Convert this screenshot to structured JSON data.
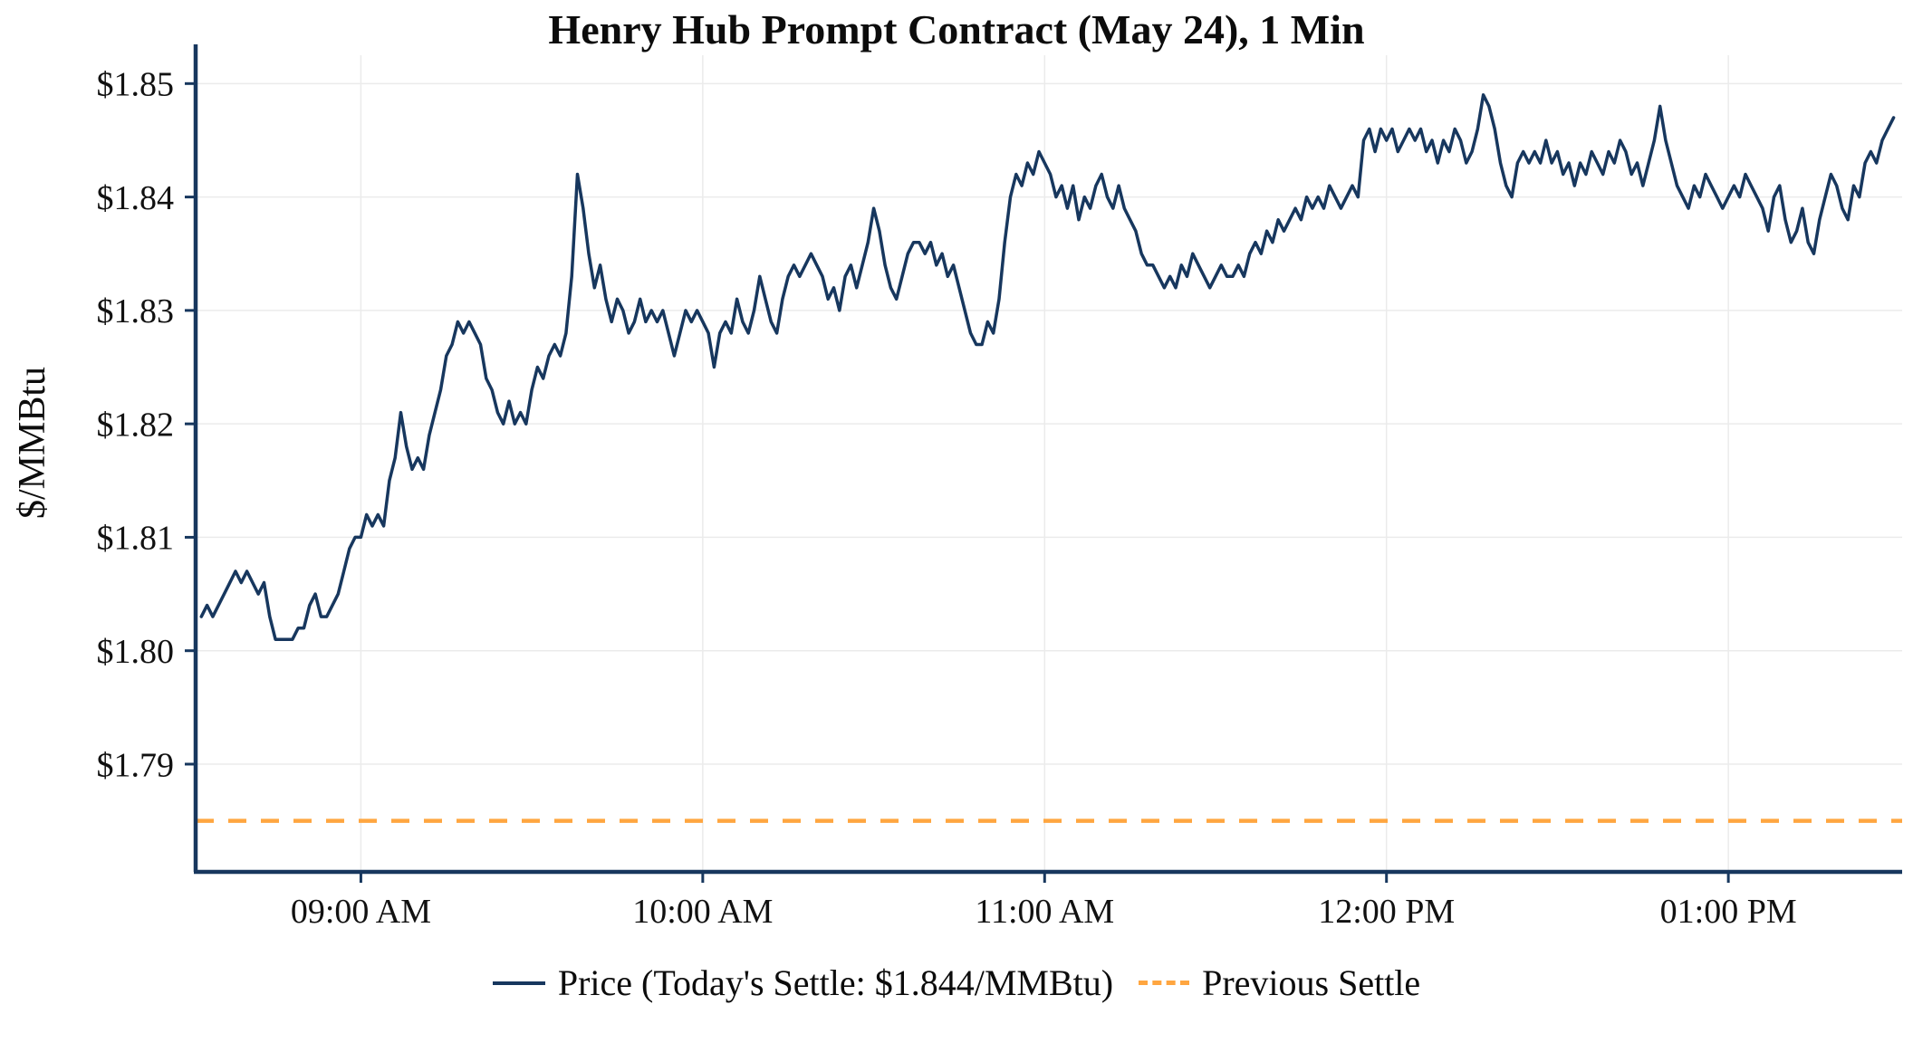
{
  "chart_data": {
    "type": "line",
    "title": "Henry Hub Prompt Contract (May 24), 1 Min",
    "xlabel": "",
    "ylabel": "$/MMBtu",
    "x_unit": "minutes_since_midnight",
    "xlim": [
      511,
      810.5
    ],
    "ylim": [
      1.7805,
      1.8525
    ],
    "grid": true,
    "legend_position": "bottom-center",
    "legend": {
      "price_label": "Price (Today's Settle: $1.844/MMBtu)",
      "settle_label": "Previous Settle"
    },
    "today_settle": 1.844,
    "previous_settle": 1.785,
    "colors": {
      "price": "#17375e",
      "settle": "#ffa640",
      "axis": "#17375e",
      "grid": "#ebebeb",
      "text": "#111111"
    },
    "x_ticks": [
      {
        "m": 540,
        "label": "09:00 AM"
      },
      {
        "m": 600,
        "label": "10:00 AM"
      },
      {
        "m": 660,
        "label": "11:00 AM"
      },
      {
        "m": 720,
        "label": "12:00 PM"
      },
      {
        "m": 780,
        "label": "01:00 PM"
      }
    ],
    "y_ticks": [
      {
        "v": 1.79,
        "label": "$1.79"
      },
      {
        "v": 1.8,
        "label": "$1.80"
      },
      {
        "v": 1.81,
        "label": "$1.81"
      },
      {
        "v": 1.82,
        "label": "$1.82"
      },
      {
        "v": 1.83,
        "label": "$1.83"
      },
      {
        "v": 1.84,
        "label": "$1.84"
      },
      {
        "v": 1.85,
        "label": "$1.85"
      }
    ],
    "series": [
      {
        "name": "Price",
        "points": [
          [
            512,
            1.803
          ],
          [
            513,
            1.804
          ],
          [
            514,
            1.803
          ],
          [
            516,
            1.805
          ],
          [
            518,
            1.807
          ],
          [
            519,
            1.806
          ],
          [
            520,
            1.807
          ],
          [
            522,
            1.805
          ],
          [
            523,
            1.806
          ],
          [
            524,
            1.803
          ],
          [
            525,
            1.801
          ],
          [
            526,
            1.801
          ],
          [
            528,
            1.801
          ],
          [
            529,
            1.802
          ],
          [
            530,
            1.802
          ],
          [
            531,
            1.804
          ],
          [
            532,
            1.805
          ],
          [
            533,
            1.803
          ],
          [
            534,
            1.803
          ],
          [
            535,
            1.804
          ],
          [
            536,
            1.805
          ],
          [
            537,
            1.807
          ],
          [
            538,
            1.809
          ],
          [
            539,
            1.81
          ],
          [
            540,
            1.81
          ],
          [
            541,
            1.812
          ],
          [
            542,
            1.811
          ],
          [
            543,
            1.812
          ],
          [
            544,
            1.811
          ],
          [
            545,
            1.815
          ],
          [
            546,
            1.817
          ],
          [
            547,
            1.821
          ],
          [
            548,
            1.818
          ],
          [
            549,
            1.816
          ],
          [
            550,
            1.817
          ],
          [
            551,
            1.816
          ],
          [
            552,
            1.819
          ],
          [
            553,
            1.821
          ],
          [
            554,
            1.823
          ],
          [
            555,
            1.826
          ],
          [
            556,
            1.827
          ],
          [
            557,
            1.829
          ],
          [
            558,
            1.828
          ],
          [
            559,
            1.829
          ],
          [
            560,
            1.828
          ],
          [
            561,
            1.827
          ],
          [
            562,
            1.824
          ],
          [
            563,
            1.823
          ],
          [
            564,
            1.821
          ],
          [
            565,
            1.82
          ],
          [
            566,
            1.822
          ],
          [
            567,
            1.82
          ],
          [
            568,
            1.821
          ],
          [
            569,
            1.82
          ],
          [
            570,
            1.823
          ],
          [
            571,
            1.825
          ],
          [
            572,
            1.824
          ],
          [
            573,
            1.826
          ],
          [
            574,
            1.827
          ],
          [
            575,
            1.826
          ],
          [
            576,
            1.828
          ],
          [
            577,
            1.833
          ],
          [
            578,
            1.842
          ],
          [
            579,
            1.839
          ],
          [
            580,
            1.835
          ],
          [
            581,
            1.832
          ],
          [
            582,
            1.834
          ],
          [
            583,
            1.831
          ],
          [
            584,
            1.829
          ],
          [
            585,
            1.831
          ],
          [
            586,
            1.83
          ],
          [
            587,
            1.828
          ],
          [
            588,
            1.829
          ],
          [
            589,
            1.831
          ],
          [
            590,
            1.829
          ],
          [
            591,
            1.83
          ],
          [
            592,
            1.829
          ],
          [
            593,
            1.83
          ],
          [
            594,
            1.828
          ],
          [
            595,
            1.826
          ],
          [
            596,
            1.828
          ],
          [
            597,
            1.83
          ],
          [
            598,
            1.829
          ],
          [
            599,
            1.83
          ],
          [
            600,
            1.829
          ],
          [
            601,
            1.828
          ],
          [
            602,
            1.825
          ],
          [
            603,
            1.828
          ],
          [
            604,
            1.829
          ],
          [
            605,
            1.828
          ],
          [
            606,
            1.831
          ],
          [
            607,
            1.829
          ],
          [
            608,
            1.828
          ],
          [
            609,
            1.83
          ],
          [
            610,
            1.833
          ],
          [
            611,
            1.831
          ],
          [
            612,
            1.829
          ],
          [
            613,
            1.828
          ],
          [
            614,
            1.831
          ],
          [
            615,
            1.833
          ],
          [
            616,
            1.834
          ],
          [
            617,
            1.833
          ],
          [
            618,
            1.834
          ],
          [
            619,
            1.835
          ],
          [
            620,
            1.834
          ],
          [
            621,
            1.833
          ],
          [
            622,
            1.831
          ],
          [
            623,
            1.832
          ],
          [
            624,
            1.83
          ],
          [
            625,
            1.833
          ],
          [
            626,
            1.834
          ],
          [
            627,
            1.832
          ],
          [
            628,
            1.834
          ],
          [
            629,
            1.836
          ],
          [
            630,
            1.839
          ],
          [
            631,
            1.837
          ],
          [
            632,
            1.834
          ],
          [
            633,
            1.832
          ],
          [
            634,
            1.831
          ],
          [
            635,
            1.833
          ],
          [
            636,
            1.835
          ],
          [
            637,
            1.836
          ],
          [
            638,
            1.836
          ],
          [
            639,
            1.835
          ],
          [
            640,
            1.836
          ],
          [
            641,
            1.834
          ],
          [
            642,
            1.835
          ],
          [
            643,
            1.833
          ],
          [
            644,
            1.834
          ],
          [
            645,
            1.832
          ],
          [
            646,
            1.83
          ],
          [
            647,
            1.828
          ],
          [
            648,
            1.827
          ],
          [
            649,
            1.827
          ],
          [
            650,
            1.829
          ],
          [
            651,
            1.828
          ],
          [
            652,
            1.831
          ],
          [
            653,
            1.836
          ],
          [
            654,
            1.84
          ],
          [
            655,
            1.842
          ],
          [
            656,
            1.841
          ],
          [
            657,
            1.843
          ],
          [
            658,
            1.842
          ],
          [
            659,
            1.844
          ],
          [
            660,
            1.843
          ],
          [
            661,
            1.842
          ],
          [
            662,
            1.84
          ],
          [
            663,
            1.841
          ],
          [
            664,
            1.839
          ],
          [
            665,
            1.841
          ],
          [
            666,
            1.838
          ],
          [
            667,
            1.84
          ],
          [
            668,
            1.839
          ],
          [
            669,
            1.841
          ],
          [
            670,
            1.842
          ],
          [
            671,
            1.84
          ],
          [
            672,
            1.839
          ],
          [
            673,
            1.841
          ],
          [
            674,
            1.839
          ],
          [
            675,
            1.838
          ],
          [
            676,
            1.837
          ],
          [
            677,
            1.835
          ],
          [
            678,
            1.834
          ],
          [
            679,
            1.834
          ],
          [
            680,
            1.833
          ],
          [
            681,
            1.832
          ],
          [
            682,
            1.833
          ],
          [
            683,
            1.832
          ],
          [
            684,
            1.834
          ],
          [
            685,
            1.833
          ],
          [
            686,
            1.835
          ],
          [
            687,
            1.834
          ],
          [
            688,
            1.833
          ],
          [
            689,
            1.832
          ],
          [
            690,
            1.833
          ],
          [
            691,
            1.834
          ],
          [
            692,
            1.833
          ],
          [
            693,
            1.833
          ],
          [
            694,
            1.834
          ],
          [
            695,
            1.833
          ],
          [
            696,
            1.835
          ],
          [
            697,
            1.836
          ],
          [
            698,
            1.835
          ],
          [
            699,
            1.837
          ],
          [
            700,
            1.836
          ],
          [
            701,
            1.838
          ],
          [
            702,
            1.837
          ],
          [
            703,
            1.838
          ],
          [
            704,
            1.839
          ],
          [
            705,
            1.838
          ],
          [
            706,
            1.84
          ],
          [
            707,
            1.839
          ],
          [
            708,
            1.84
          ],
          [
            709,
            1.839
          ],
          [
            710,
            1.841
          ],
          [
            711,
            1.84
          ],
          [
            712,
            1.839
          ],
          [
            713,
            1.84
          ],
          [
            714,
            1.841
          ],
          [
            715,
            1.84
          ],
          [
            716,
            1.845
          ],
          [
            717,
            1.846
          ],
          [
            718,
            1.844
          ],
          [
            719,
            1.846
          ],
          [
            720,
            1.845
          ],
          [
            721,
            1.846
          ],
          [
            722,
            1.844
          ],
          [
            723,
            1.845
          ],
          [
            724,
            1.846
          ],
          [
            725,
            1.845
          ],
          [
            726,
            1.846
          ],
          [
            727,
            1.844
          ],
          [
            728,
            1.845
          ],
          [
            729,
            1.843
          ],
          [
            730,
            1.845
          ],
          [
            731,
            1.844
          ],
          [
            732,
            1.846
          ],
          [
            733,
            1.845
          ],
          [
            734,
            1.843
          ],
          [
            735,
            1.844
          ],
          [
            736,
            1.846
          ],
          [
            737,
            1.849
          ],
          [
            738,
            1.848
          ],
          [
            739,
            1.846
          ],
          [
            740,
            1.843
          ],
          [
            741,
            1.841
          ],
          [
            742,
            1.84
          ],
          [
            743,
            1.843
          ],
          [
            744,
            1.844
          ],
          [
            745,
            1.843
          ],
          [
            746,
            1.844
          ],
          [
            747,
            1.843
          ],
          [
            748,
            1.845
          ],
          [
            749,
            1.843
          ],
          [
            750,
            1.844
          ],
          [
            751,
            1.842
          ],
          [
            752,
            1.843
          ],
          [
            753,
            1.841
          ],
          [
            754,
            1.843
          ],
          [
            755,
            1.842
          ],
          [
            756,
            1.844
          ],
          [
            757,
            1.843
          ],
          [
            758,
            1.842
          ],
          [
            759,
            1.844
          ],
          [
            760,
            1.843
          ],
          [
            761,
            1.845
          ],
          [
            762,
            1.844
          ],
          [
            763,
            1.842
          ],
          [
            764,
            1.843
          ],
          [
            765,
            1.841
          ],
          [
            766,
            1.843
          ],
          [
            767,
            1.845
          ],
          [
            768,
            1.848
          ],
          [
            769,
            1.845
          ],
          [
            770,
            1.843
          ],
          [
            771,
            1.841
          ],
          [
            772,
            1.84
          ],
          [
            773,
            1.839
          ],
          [
            774,
            1.841
          ],
          [
            775,
            1.84
          ],
          [
            776,
            1.842
          ],
          [
            777,
            1.841
          ],
          [
            778,
            1.84
          ],
          [
            779,
            1.839
          ],
          [
            780,
            1.84
          ],
          [
            781,
            1.841
          ],
          [
            782,
            1.84
          ],
          [
            783,
            1.842
          ],
          [
            784,
            1.841
          ],
          [
            785,
            1.84
          ],
          [
            786,
            1.839
          ],
          [
            787,
            1.837
          ],
          [
            788,
            1.84
          ],
          [
            789,
            1.841
          ],
          [
            790,
            1.838
          ],
          [
            791,
            1.836
          ],
          [
            792,
            1.837
          ],
          [
            793,
            1.839
          ],
          [
            794,
            1.836
          ],
          [
            795,
            1.835
          ],
          [
            796,
            1.838
          ],
          [
            797,
            1.84
          ],
          [
            798,
            1.842
          ],
          [
            799,
            1.841
          ],
          [
            800,
            1.839
          ],
          [
            801,
            1.838
          ],
          [
            802,
            1.841
          ],
          [
            803,
            1.84
          ],
          [
            804,
            1.843
          ],
          [
            805,
            1.844
          ],
          [
            806,
            1.843
          ],
          [
            807,
            1.845
          ],
          [
            808,
            1.846
          ],
          [
            809,
            1.847
          ]
        ]
      },
      {
        "name": "Previous Settle",
        "style": "dashed",
        "value": 1.785
      }
    ]
  }
}
